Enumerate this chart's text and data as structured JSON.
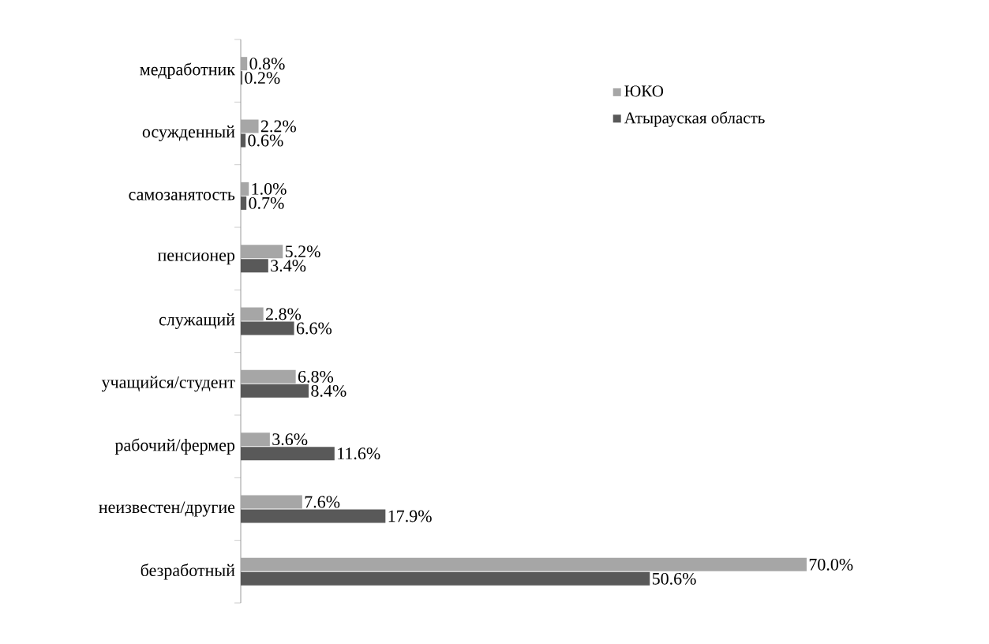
{
  "chart_data": {
    "type": "bar",
    "orientation": "horizontal",
    "categories": [
      "медработник",
      "осужденный",
      "самозанятость",
      "пенсионер",
      "служащий",
      "учащийся/студент",
      "рабочий/фермер",
      "неизвестен/другие",
      "безработный"
    ],
    "series": [
      {
        "name": "ЮКО",
        "color": "#a6a6a6",
        "values": [
          0.8,
          2.2,
          1.0,
          5.2,
          2.8,
          6.8,
          3.6,
          7.6,
          70.0
        ],
        "value_labels": [
          "0.8%",
          "2.2%",
          "1.0%",
          "5.2%",
          "2.8%",
          "6.8%",
          "3.6%",
          "7.6%",
          "70.0%"
        ]
      },
      {
        "name": "Атырауская область",
        "color": "#595959",
        "values": [
          0.2,
          0.6,
          0.7,
          3.4,
          6.6,
          8.4,
          11.6,
          17.9,
          50.6
        ],
        "value_labels": [
          "0.2%",
          "0.6%",
          "0.7%",
          "3.4%",
          "6.6%",
          "8.4%",
          "11.6%",
          "17.9%",
          "50.6%"
        ]
      }
    ],
    "tick_labels": "y",
    "legend": "top right",
    "grid": false
  }
}
